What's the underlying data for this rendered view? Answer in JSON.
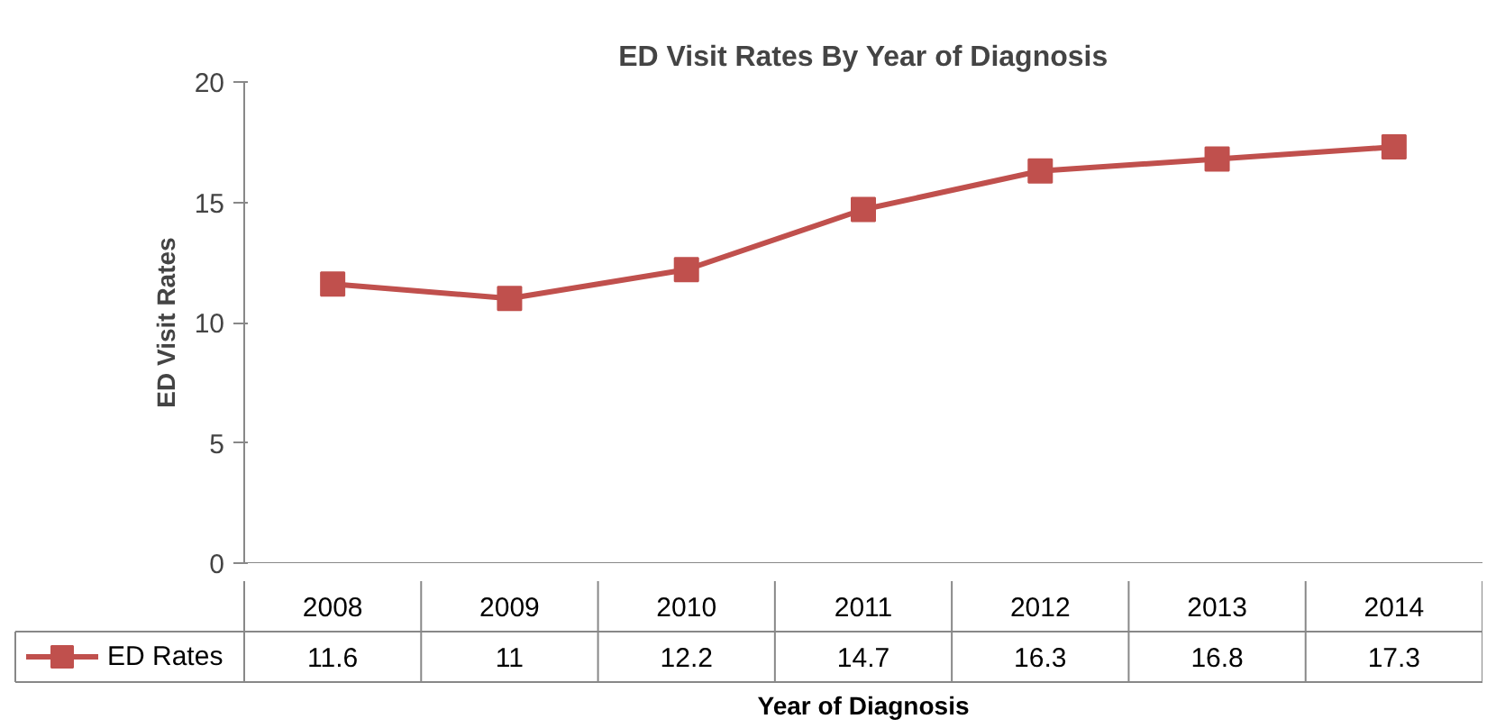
{
  "chart_data": {
    "type": "line",
    "title": "ED Visit Rates By Year of Diagnosis",
    "xlabel": "Year of Diagnosis",
    "ylabel": "ED Visit Rates",
    "categories": [
      "2008",
      "2009",
      "2010",
      "2011",
      "2012",
      "2013",
      "2014"
    ],
    "series": [
      {
        "name": "ED Rates",
        "color": "#c0504d",
        "values": [
          11.6,
          11,
          12.2,
          14.7,
          16.3,
          16.8,
          17.3
        ]
      }
    ],
    "ylim": [
      0,
      20
    ],
    "yticks": [
      0,
      5,
      10,
      15,
      20
    ],
    "grid": false,
    "legend": "bottom",
    "marker": "square",
    "line_style": "solid",
    "data_labels": true
  }
}
